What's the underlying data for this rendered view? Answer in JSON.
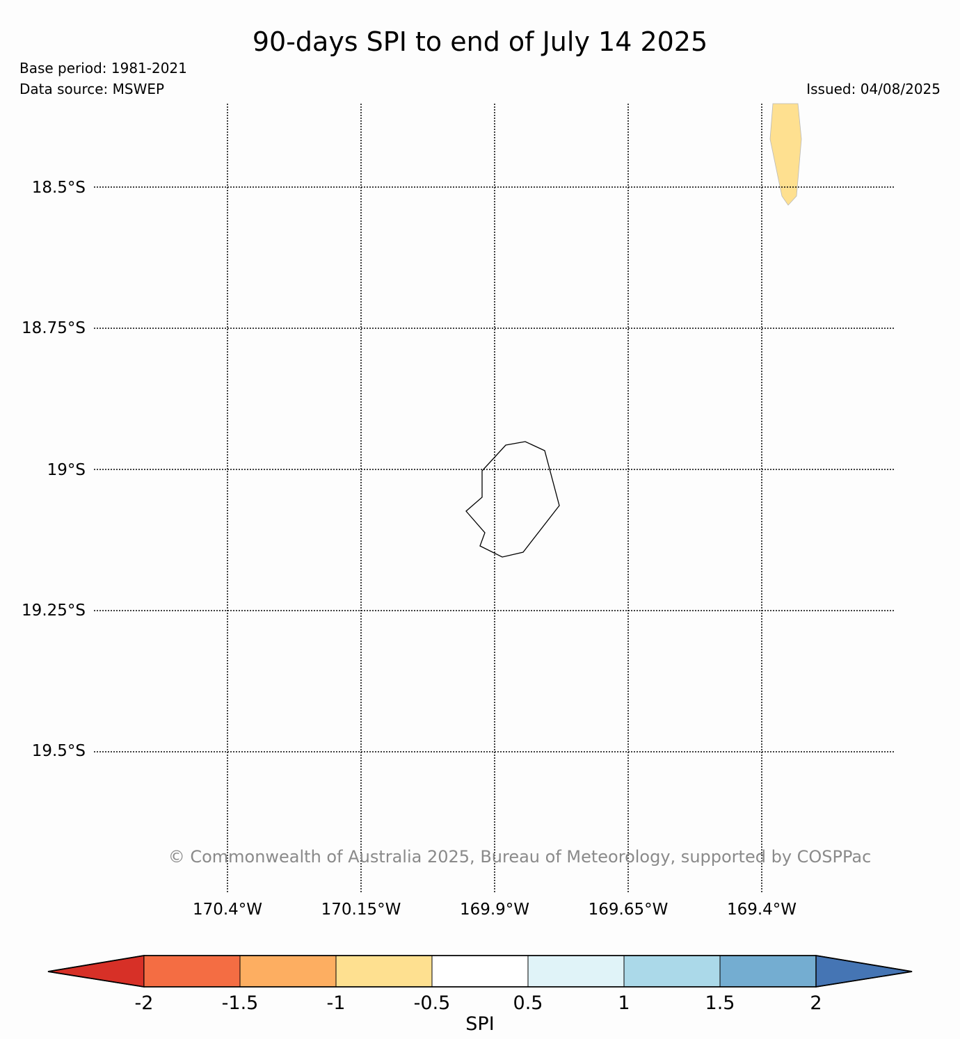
{
  "title": "90-days SPI to end of July 14 2025",
  "base_period": "Base period: 1981-2021",
  "data_source": "Data source: MSWEP",
  "issued": "Issued: 04/08/2025",
  "copyright": "© Commonwealth of Australia 2025, Bureau of Meteorology, supported by COSPPac",
  "map": {
    "latitude_labels": [
      "18.5°S",
      "18.75°S",
      "19°S",
      "19.25°S",
      "19.5°S"
    ],
    "longitude_labels": [
      "170.4°W",
      "170.15°W",
      "169.9°W",
      "169.65°W",
      "169.4°W"
    ],
    "gridlines": "dotted",
    "coastline": "Niue",
    "spi_shaded_region": {
      "category": "-1 to -0.5",
      "color": "#fee090"
    }
  },
  "colorbar": {
    "label": "SPI",
    "ticks": [
      "-2",
      "-1.5",
      "-1",
      "-0.5",
      "0.5",
      "1",
      "1.5",
      "2"
    ],
    "colors": [
      "#d73027",
      "#f46d43",
      "#fdae61",
      "#fee090",
      "#ffffff",
      "#e0f3f8",
      "#abd9e9",
      "#74add1",
      "#4575b4"
    ]
  }
}
